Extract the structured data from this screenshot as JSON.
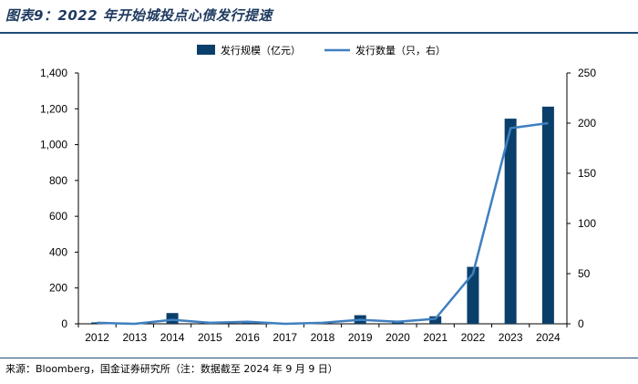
{
  "title": "图表9：2022 年开始城投点心债发行提速",
  "source": "来源：Bloomberg，国金证券研究所（注：数据截至 2024 年 9 月 9 日）",
  "colors": {
    "bar": "#0b3f6b",
    "line": "#3f7fc0",
    "rule": "#1f4e79"
  },
  "chart_data": {
    "type": "bar+line",
    "title": "图表9：2022 年开始城投点心债发行提速",
    "categories": [
      "2012",
      "2013",
      "2014",
      "2015",
      "2016",
      "2017",
      "2018",
      "2019",
      "2020",
      "2021",
      "2022",
      "2023",
      "2024"
    ],
    "series": [
      {
        "name": "发行规模（亿元）",
        "type": "bar",
        "axis": "left",
        "values": [
          8,
          2,
          60,
          3,
          10,
          2,
          2,
          48,
          18,
          42,
          318,
          1145,
          1212
        ]
      },
      {
        "name": "发行数量（只，右）",
        "type": "line",
        "axis": "right",
        "values": [
          1,
          0,
          4,
          1,
          2,
          0,
          1,
          4,
          2,
          5,
          50,
          195,
          200
        ]
      }
    ],
    "y_left": {
      "ylim": [
        0,
        1400
      ],
      "ticks": [
        0,
        200,
        400,
        600,
        800,
        1000,
        1200,
        1400
      ],
      "tick_labels": [
        "0",
        "200",
        "400",
        "600",
        "800",
        "1,000",
        "1,200",
        "1,400"
      ]
    },
    "y_right": {
      "ylim": [
        0,
        250
      ],
      "ticks": [
        0,
        50,
        100,
        150,
        200,
        250
      ],
      "tick_labels": [
        "0",
        "50",
        "100",
        "150",
        "200",
        "250"
      ]
    },
    "legend_position": "top-center",
    "grid": false
  }
}
